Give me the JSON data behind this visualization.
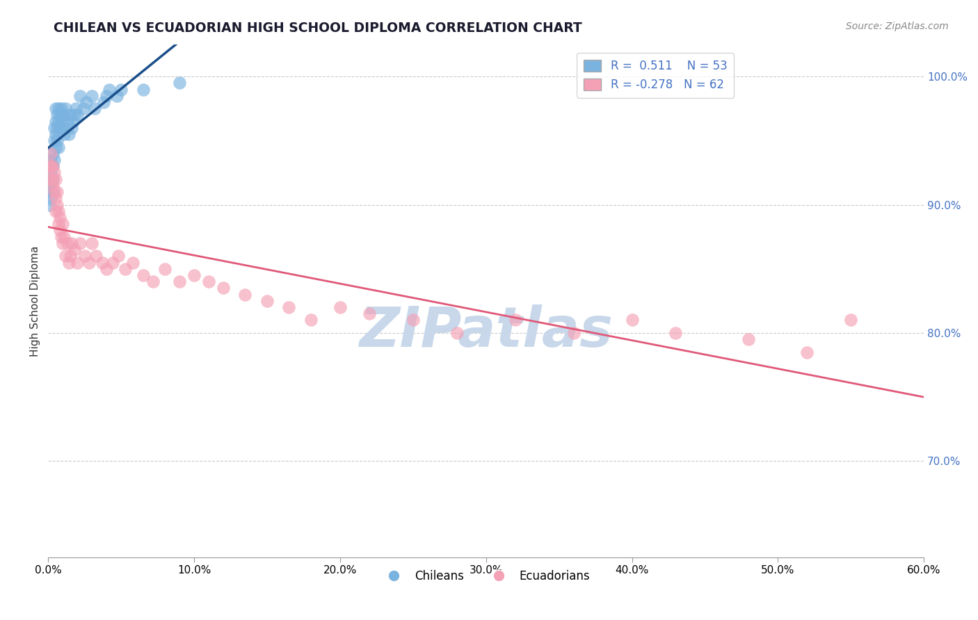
{
  "title": "CHILEAN VS ECUADORIAN HIGH SCHOOL DIPLOMA CORRELATION CHART",
  "source": "Source: ZipAtlas.com",
  "ylabel": "High School Diploma",
  "r_chilean": 0.511,
  "n_chilean": 53,
  "r_ecuadorian": -0.278,
  "n_ecuadorian": 62,
  "xlim": [
    0.0,
    0.6
  ],
  "ylim": [
    0.625,
    1.025
  ],
  "x_ticks": [
    0.0,
    0.1,
    0.2,
    0.3,
    0.4,
    0.5,
    0.6
  ],
  "x_tick_labels": [
    "0.0%",
    "10.0%",
    "20.0%",
    "30.0%",
    "40.0%",
    "50.0%",
    "60.0%"
  ],
  "y_ticks": [
    0.7,
    0.8,
    0.9,
    1.0
  ],
  "y_tick_labels": [
    "70.0%",
    "80.0%",
    "90.0%",
    "100.0%"
  ],
  "color_chilean": "#7ab3e0",
  "color_ecuadorian": "#f4a0b5",
  "line_color_chilean": "#1a4f8a",
  "line_color_ecuadorian": "#e05878",
  "background_color": "#ffffff",
  "watermark_color": "#c8d8ea",
  "chilean_x": [
    0.001,
    0.001,
    0.001,
    0.002,
    0.002,
    0.002,
    0.002,
    0.003,
    0.003,
    0.003,
    0.003,
    0.004,
    0.004,
    0.004,
    0.005,
    0.005,
    0.005,
    0.005,
    0.006,
    0.006,
    0.006,
    0.007,
    0.007,
    0.007,
    0.008,
    0.008,
    0.009,
    0.009,
    0.01,
    0.01,
    0.011,
    0.011,
    0.012,
    0.013,
    0.014,
    0.015,
    0.016,
    0.017,
    0.018,
    0.019,
    0.02,
    0.022,
    0.024,
    0.026,
    0.03,
    0.032,
    0.038,
    0.04,
    0.042,
    0.047,
    0.05,
    0.065,
    0.09
  ],
  "chilean_y": [
    0.9,
    0.92,
    0.91,
    0.915,
    0.925,
    0.935,
    0.905,
    0.92,
    0.93,
    0.94,
    0.91,
    0.935,
    0.95,
    0.96,
    0.945,
    0.955,
    0.965,
    0.975,
    0.95,
    0.96,
    0.97,
    0.945,
    0.965,
    0.975,
    0.96,
    0.97,
    0.965,
    0.975,
    0.96,
    0.97,
    0.97,
    0.955,
    0.975,
    0.965,
    0.955,
    0.97,
    0.96,
    0.965,
    0.97,
    0.975,
    0.97,
    0.985,
    0.975,
    0.98,
    0.985,
    0.975,
    0.98,
    0.985,
    0.99,
    0.985,
    0.99,
    0.99,
    0.995
  ],
  "ecuadorian_x": [
    0.001,
    0.001,
    0.002,
    0.002,
    0.003,
    0.003,
    0.003,
    0.004,
    0.004,
    0.005,
    0.005,
    0.005,
    0.006,
    0.006,
    0.007,
    0.007,
    0.008,
    0.008,
    0.009,
    0.01,
    0.01,
    0.011,
    0.012,
    0.013,
    0.014,
    0.015,
    0.016,
    0.018,
    0.02,
    0.022,
    0.025,
    0.028,
    0.03,
    0.033,
    0.037,
    0.04,
    0.044,
    0.048,
    0.053,
    0.058,
    0.065,
    0.072,
    0.08,
    0.09,
    0.1,
    0.11,
    0.12,
    0.135,
    0.15,
    0.165,
    0.18,
    0.2,
    0.22,
    0.25,
    0.28,
    0.32,
    0.36,
    0.4,
    0.43,
    0.48,
    0.52,
    0.55
  ],
  "ecuadorian_y": [
    0.93,
    0.92,
    0.93,
    0.94,
    0.92,
    0.93,
    0.915,
    0.91,
    0.925,
    0.92,
    0.905,
    0.895,
    0.91,
    0.9,
    0.885,
    0.895,
    0.88,
    0.89,
    0.875,
    0.87,
    0.885,
    0.875,
    0.86,
    0.87,
    0.855,
    0.86,
    0.87,
    0.865,
    0.855,
    0.87,
    0.86,
    0.855,
    0.87,
    0.86,
    0.855,
    0.85,
    0.855,
    0.86,
    0.85,
    0.855,
    0.845,
    0.84,
    0.85,
    0.84,
    0.845,
    0.84,
    0.835,
    0.83,
    0.825,
    0.82,
    0.81,
    0.82,
    0.815,
    0.81,
    0.8,
    0.81,
    0.8,
    0.81,
    0.8,
    0.795,
    0.785,
    0.81
  ]
}
